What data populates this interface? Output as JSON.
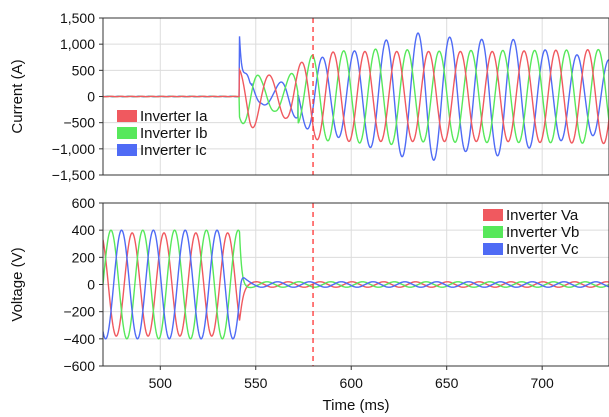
{
  "chart_data": [
    {
      "type": "line",
      "title": "",
      "xlabel": "",
      "ylabel": "Current (A)",
      "xlim": [
        470,
        735
      ],
      "ylim": [
        -1500,
        1500
      ],
      "yticks": [
        -1500,
        -1000,
        -500,
        0,
        500,
        1000,
        1500
      ],
      "ytick_labels": [
        "−1,500",
        "−1,000",
        "−500",
        "0",
        "500",
        "1,000",
        "1,500"
      ],
      "grid": true,
      "legend_position": "bottom-left",
      "marker_line": {
        "x": 580,
        "color": "#ff3333",
        "style": "dashed"
      },
      "series": [
        {
          "name": "Inverter Ia",
          "color": "#f0595f",
          "x": [
            470,
            540,
            541,
            542,
            543,
            544,
            546,
            548,
            550,
            554,
            558,
            562,
            566,
            570,
            580,
            600,
            620,
            640,
            660,
            680,
            700,
            735
          ],
          "y": [
            0,
            0,
            120,
            400,
            780,
            560,
            -540,
            560,
            -450,
            420,
            -380,
            420,
            -320,
            480,
            820,
            850,
            860,
            860,
            860,
            860,
            880,
            900
          ]
        },
        {
          "name": "Inverter Ib",
          "color": "#57e85b",
          "x": [
            470,
            540,
            541,
            542,
            543,
            544,
            546,
            548,
            550,
            554,
            558,
            562,
            566,
            570,
            580,
            600,
            620,
            640,
            660,
            680,
            700,
            735
          ],
          "y": [
            0,
            0,
            -80,
            -350,
            -720,
            -640,
            450,
            -500,
            380,
            -350,
            300,
            -370,
            280,
            -460,
            -800,
            880,
            920,
            860,
            880,
            880,
            880,
            900
          ]
        },
        {
          "name": "Inverter Ic",
          "color": "#4f6bf5",
          "x": [
            470,
            540,
            541,
            542,
            543,
            544,
            546,
            548,
            550,
            554,
            558,
            562,
            566,
            570,
            580,
            600,
            620,
            640,
            660,
            680,
            700,
            735
          ],
          "y": [
            0,
            0,
            300,
            1200,
            1000,
            -200,
            300,
            -200,
            150,
            -200,
            200,
            -150,
            350,
            -300,
            750,
            750,
            1100,
            1250,
            1050,
            1150,
            900,
            700
          ]
        }
      ],
      "draw_model": {
        "period": 16.667,
        "start": 541.5,
        "phase_ref": 553,
        "phase_shift": [
          0,
          120,
          -120
        ],
        "post_phase": [
          0,
          -120,
          120
        ],
        "envelope_t": [
          541.5,
          547,
          553,
          560,
          566,
          572,
          580,
          590,
          600,
          620,
          640,
          660,
          680,
          700,
          735
        ],
        "envelope": [
          [
            550,
            650,
            450,
            380,
            420,
            600,
            820,
            850,
            860,
            860,
            860,
            860,
            860,
            880,
            900
          ],
          [
            500,
            550,
            350,
            280,
            350,
            560,
            800,
            860,
            880,
            920,
            860,
            880,
            880,
            880,
            900
          ],
          [
            1200,
            350,
            150,
            200,
            350,
            420,
            750,
            750,
            850,
            1100,
            1250,
            1050,
            1150,
            900,
            700
          ]
        ],
        "burst_amp": [
          0,
          0,
          1150
        ],
        "burst_tau": 1.8
      }
    },
    {
      "type": "line",
      "title": "",
      "xlabel": "Time (ms)",
      "ylabel": "Voltage (V)",
      "xlim": [
        470,
        735
      ],
      "ylim": [
        -600,
        600
      ],
      "xticks": [
        500,
        550,
        600,
        650,
        700
      ],
      "xtick_labels": [
        "500",
        "550",
        "600",
        "650",
        "700"
      ],
      "yticks": [
        -600,
        -400,
        -200,
        0,
        200,
        400,
        600
      ],
      "ytick_labels": [
        "−600",
        "−400",
        "−200",
        "0",
        "200",
        "400",
        "600"
      ],
      "grid": true,
      "legend_position": "top-right",
      "marker_line": {
        "x": 580,
        "color": "#ff3333",
        "style": "dashed"
      },
      "series": [
        {
          "name": "Inverter Va",
          "color": "#f0595f",
          "x": [
            470,
            500,
            530,
            541,
            543,
            545,
            548,
            580,
            620,
            660,
            700,
            735
          ],
          "y": [
            380,
            380,
            380,
            380,
            200,
            30,
            15,
            20,
            20,
            20,
            20,
            20
          ]
        },
        {
          "name": "Inverter Vb",
          "color": "#57e85b",
          "x": [
            470,
            500,
            530,
            541,
            543,
            545,
            548,
            580,
            620,
            660,
            700,
            735
          ],
          "y": [
            400,
            400,
            400,
            400,
            250,
            30,
            15,
            20,
            20,
            20,
            20,
            20
          ]
        },
        {
          "name": "Inverter Vc",
          "color": "#4f6bf5",
          "x": [
            470,
            500,
            530,
            541,
            543,
            545,
            548,
            580,
            620,
            660,
            700,
            735
          ],
          "y": [
            400,
            400,
            400,
            400,
            300,
            30,
            15,
            20,
            20,
            20,
            20,
            20
          ]
        }
      ],
      "draw_model": {
        "period": 16.667,
        "phase_ref": 470,
        "phase_shift": [
          120,
          0,
          -120
        ],
        "amplitude_pre": [
          380,
          400,
          400
        ],
        "fault_time": 541.5,
        "amplitude_post": 20
      }
    }
  ]
}
